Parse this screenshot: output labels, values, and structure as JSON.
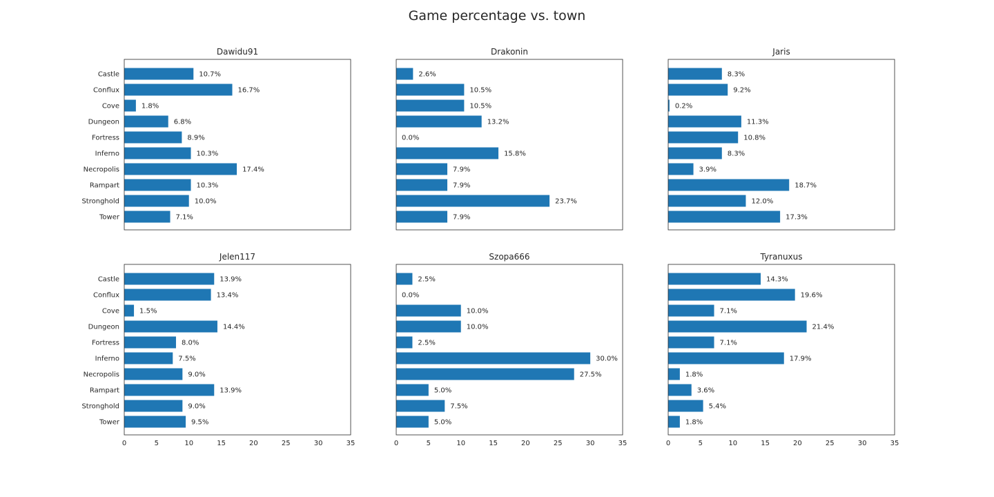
{
  "title": "Game percentage vs. town",
  "colors": {
    "bar": "#1f77b4",
    "axes": "#262626"
  },
  "chart_data": {
    "type": "bar",
    "orientation": "horizontal",
    "categories": [
      "Castle",
      "Conflux",
      "Cove",
      "Dungeon",
      "Fortress",
      "Inferno",
      "Necropolis",
      "Rampart",
      "Stronghold",
      "Tower"
    ],
    "xlim": [
      0,
      35
    ],
    "xticks": [
      0,
      5,
      10,
      15,
      20,
      25,
      30,
      35
    ],
    "grid": false,
    "panels": [
      {
        "title": "Dawidu91",
        "values": [
          10.7,
          16.7,
          1.8,
          6.8,
          8.9,
          10.3,
          17.4,
          10.3,
          10.0,
          7.1
        ],
        "labels": [
          "10.7%",
          "16.7%",
          "1.8%",
          "6.8%",
          "8.9%",
          "10.3%",
          "17.4%",
          "10.3%",
          "10.0%",
          "7.1%"
        ]
      },
      {
        "title": "Drakonin",
        "values": [
          2.6,
          10.5,
          10.5,
          13.2,
          0.0,
          15.8,
          7.9,
          7.9,
          23.7,
          7.9
        ],
        "labels": [
          "2.6%",
          "10.5%",
          "10.5%",
          "13.2%",
          "0.0%",
          "15.8%",
          "7.9%",
          "7.9%",
          "23.7%",
          "7.9%"
        ]
      },
      {
        "title": "Jaris",
        "values": [
          8.3,
          9.2,
          0.2,
          11.3,
          10.8,
          8.3,
          3.9,
          18.7,
          12.0,
          17.3
        ],
        "labels": [
          "8.3%",
          "9.2%",
          "0.2%",
          "11.3%",
          "10.8%",
          "8.3%",
          "3.9%",
          "18.7%",
          "12.0%",
          "17.3%"
        ]
      },
      {
        "title": "Jelen117",
        "values": [
          13.9,
          13.4,
          1.5,
          14.4,
          8.0,
          7.5,
          9.0,
          13.9,
          9.0,
          9.5
        ],
        "labels": [
          "13.9%",
          "13.4%",
          "1.5%",
          "14.4%",
          "8.0%",
          "7.5%",
          "9.0%",
          "13.9%",
          "9.0%",
          "9.5%"
        ]
      },
      {
        "title": "Szopa666",
        "values": [
          2.5,
          0.0,
          10.0,
          10.0,
          2.5,
          30.0,
          27.5,
          5.0,
          7.5,
          5.0
        ],
        "labels": [
          "2.5%",
          "0.0%",
          "10.0%",
          "10.0%",
          "2.5%",
          "30.0%",
          "27.5%",
          "5.0%",
          "7.5%",
          "5.0%"
        ]
      },
      {
        "title": "Tyranuxus",
        "values": [
          14.3,
          19.6,
          7.1,
          21.4,
          7.1,
          17.9,
          1.8,
          3.6,
          5.4,
          1.8
        ],
        "labels": [
          "14.3%",
          "19.6%",
          "7.1%",
          "21.4%",
          "7.1%",
          "17.9%",
          "1.8%",
          "3.6%",
          "5.4%",
          "1.8%"
        ]
      }
    ]
  }
}
